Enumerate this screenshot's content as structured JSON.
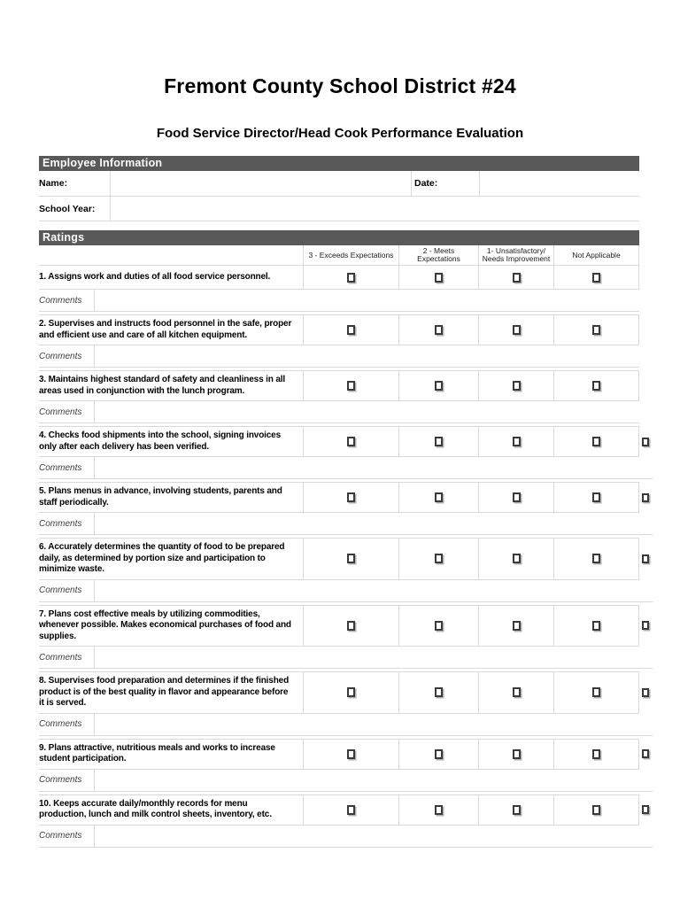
{
  "page": {
    "title": "Fremont County School District #24",
    "subtitle": "Food Service Director/Head Cook Performance Evaluation"
  },
  "employee_info": {
    "section_title": "Employee Information",
    "name_label": "Name:",
    "name_value": "",
    "date_label": "Date:",
    "date_value": "",
    "school_year_label": "School Year:",
    "school_year_value": ""
  },
  "ratings": {
    "section_title": "Ratings",
    "columns": [
      "3 - Exceeds Expectations",
      "2 - Meets Expectations",
      "1- Unsatisfactory/ Needs Improvement",
      "Not Applicable"
    ],
    "comments_label": "Comments",
    "items": [
      {
        "number": 1,
        "text": "1. Assigns work and duties of all food service personnel.",
        "extra_checkbox": false,
        "checked": [
          false,
          false,
          false,
          false
        ],
        "comment": ""
      },
      {
        "number": 2,
        "text": "2. Supervises and instructs food personnel in the safe, proper and efficient use and care of all kitchen equipment.",
        "extra_checkbox": false,
        "checked": [
          false,
          false,
          false,
          false
        ],
        "comment": ""
      },
      {
        "number": 3,
        "text": "3. Maintains highest standard of safety and cleanliness in all areas used in conjunction with the lunch program.",
        "extra_checkbox": false,
        "checked": [
          false,
          false,
          false,
          false
        ],
        "comment": ""
      },
      {
        "number": 4,
        "text": "4. Checks food shipments into the school, signing invoices only after each delivery has been verified.",
        "extra_checkbox": true,
        "checked": [
          false,
          false,
          false,
          false
        ],
        "comment": ""
      },
      {
        "number": 5,
        "text": "5. Plans menus in advance, involving students, parents and staff periodically.",
        "extra_checkbox": true,
        "checked": [
          false,
          false,
          false,
          false
        ],
        "comment": ""
      },
      {
        "number": 6,
        "text": "6.  Accurately determines the quantity of food to be prepared daily, as determined by portion size and participation to minimize waste.",
        "extra_checkbox": true,
        "checked": [
          false,
          false,
          false,
          false
        ],
        "comment": ""
      },
      {
        "number": 7,
        "text": "7. Plans cost effective meals by utilizing commodities, whenever possible. Makes economical purchases of food and supplies.",
        "extra_checkbox": true,
        "checked": [
          false,
          false,
          false,
          false
        ],
        "comment": ""
      },
      {
        "number": 8,
        "text": "8. Supervises food preparation and determines if the finished product is of the best quality in flavor and appearance before it is served.",
        "extra_checkbox": true,
        "checked": [
          false,
          false,
          false,
          false
        ],
        "comment": ""
      },
      {
        "number": 9,
        "text": "9. Plans attractive, nutritious meals and works to increase student participation.",
        "extra_checkbox": true,
        "checked": [
          false,
          false,
          false,
          false
        ],
        "comment": ""
      },
      {
        "number": 10,
        "text": "10. Keeps accurate daily/monthly records for menu production, lunch and milk control sheets, inventory, etc.",
        "extra_checkbox": true,
        "checked": [
          false,
          false,
          false,
          false
        ],
        "comment": ""
      }
    ]
  },
  "colors": {
    "section_bar": "#595959",
    "table_border": "#d9d9d9",
    "checkbox_border": "#3a3a3a"
  }
}
